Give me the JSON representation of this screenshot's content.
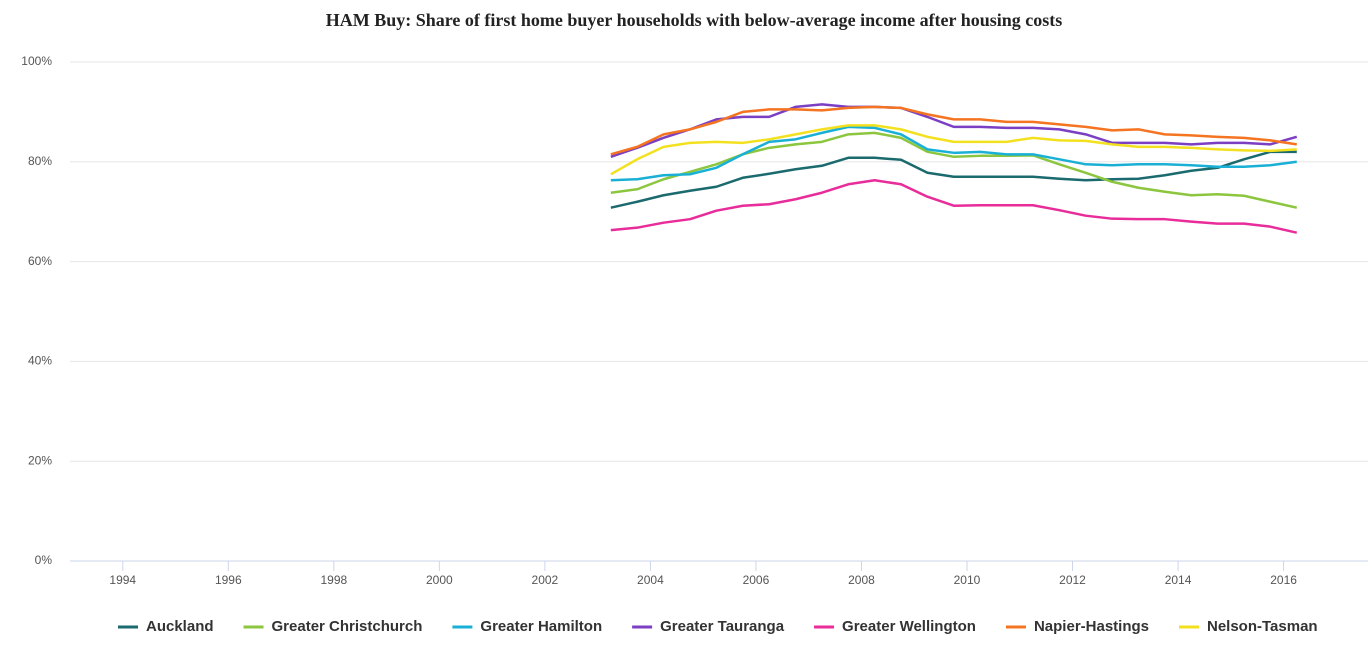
{
  "chart_data": {
    "type": "line",
    "title": "HAM Buy: Share of first home buyer households with below-average income after housing costs",
    "x": [
      2003.25,
      2003.75,
      2004.25,
      2004.75,
      2005.25,
      2005.75,
      2006.25,
      2006.75,
      2007.25,
      2007.75,
      2008.25,
      2008.75,
      2009.25,
      2009.75,
      2010.25,
      2010.75,
      2011.25,
      2011.75,
      2012.25,
      2012.75,
      2013.25,
      2013.75,
      2014.25,
      2014.75,
      2015.25,
      2015.75,
      2016.25
    ],
    "series": [
      {
        "name": "Auckland",
        "color": "#1a6a6e",
        "values": [
          70.8,
          72,
          73.3,
          74.2,
          75,
          76.8,
          77.6,
          78.5,
          79.2,
          80.8,
          80.8,
          80.4,
          77.8,
          77,
          77,
          77,
          77,
          76.6,
          76.3,
          76.5,
          76.6,
          77.3,
          78.2,
          78.8,
          80.5,
          82,
          82
        ]
      },
      {
        "name": "Greater Christchurch",
        "color": "#8cc63f",
        "values": [
          73.8,
          74.5,
          76.5,
          78,
          79.5,
          81.5,
          82.8,
          83.5,
          84,
          85.5,
          85.8,
          84.8,
          82,
          81,
          81.2,
          81.2,
          81.3,
          79.5,
          77.8,
          76,
          74.8,
          74,
          73.3,
          73.5,
          73.2,
          72,
          70.8
        ]
      },
      {
        "name": "Greater Hamilton",
        "color": "#1ab0d6",
        "values": [
          76.3,
          76.5,
          77.3,
          77.5,
          78.8,
          81.5,
          84,
          84.5,
          85.8,
          87,
          86.8,
          85.5,
          82.5,
          81.8,
          82,
          81.5,
          81.5,
          80.5,
          79.5,
          79.3,
          79.5,
          79.5,
          79.3,
          79,
          79,
          79.3,
          80
        ]
      },
      {
        "name": "Greater Tauranga",
        "color": "#7b3fc4",
        "values": [
          81,
          82.8,
          84.8,
          86.5,
          88.5,
          89,
          89,
          91,
          91.5,
          91,
          91,
          90.8,
          89,
          87,
          87,
          86.8,
          86.8,
          86.5,
          85.5,
          83.8,
          83.8,
          83.8,
          83.5,
          83.8,
          83.8,
          83.5,
          85
        ]
      },
      {
        "name": "Greater Wellington",
        "color": "#e82c9a",
        "values": [
          66.3,
          66.8,
          67.8,
          68.5,
          70.2,
          71.2,
          71.5,
          72.5,
          73.8,
          75.5,
          76.3,
          75.5,
          73,
          71.2,
          71.3,
          71.3,
          71.3,
          70.3,
          69.2,
          68.6,
          68.5,
          68.5,
          68,
          67.6,
          67.6,
          67,
          65.8
        ]
      },
      {
        "name": "Napier-Hastings",
        "color": "#f47421",
        "values": [
          81.5,
          83,
          85.5,
          86.5,
          88,
          90,
          90.5,
          90.5,
          90.3,
          90.8,
          91,
          90.8,
          89.5,
          88.5,
          88.5,
          88,
          88,
          87.5,
          87,
          86.3,
          86.5,
          85.5,
          85.3,
          85,
          84.8,
          84.3,
          83.5
        ]
      },
      {
        "name": "Nelson-Tasman",
        "color": "#f3e120",
        "values": [
          77.5,
          80.5,
          83,
          83.8,
          84,
          83.8,
          84.5,
          85.5,
          86.5,
          87.3,
          87.3,
          86.5,
          85,
          84,
          84,
          84,
          84.8,
          84.3,
          84.2,
          83.5,
          83,
          83,
          82.8,
          82.5,
          82.3,
          82.2,
          82.5
        ]
      }
    ],
    "xlim": [
      1993,
      2017.6
    ],
    "xticks": [
      1994,
      1996,
      1998,
      2000,
      2002,
      2004,
      2006,
      2008,
      2010,
      2012,
      2014,
      2016
    ],
    "ylim": [
      0,
      100
    ],
    "yticks": [
      {
        "value": 0,
        "label": "0%"
      },
      {
        "value": 20,
        "label": "20%"
      },
      {
        "value": 40,
        "label": "40%"
      },
      {
        "value": 60,
        "label": "60%"
      },
      {
        "value": 80,
        "label": "80%"
      },
      {
        "value": 100,
        "label": "100%"
      }
    ],
    "grid": true
  }
}
